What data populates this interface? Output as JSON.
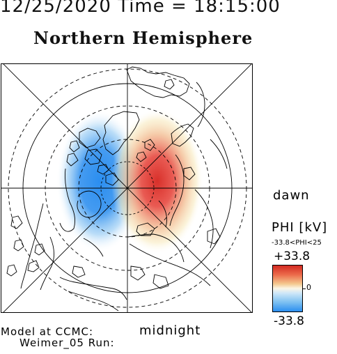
{
  "header": {
    "date_time": "12/25/2020 Time = 18:15:00",
    "hemisphere": "Northern Hemisphere"
  },
  "map": {
    "projection": "polar-stereographic",
    "view": "north-pole",
    "graticule": "dashed latitude circles, meridian spokes every 45°",
    "field": "electric potential (Weimer 2005 model)",
    "pattern": "two-cell convection",
    "dusk_cell": "negative (blue)",
    "dawn_cell": "positive (red)"
  },
  "labels": {
    "dawn": "dawn",
    "midnight": "midnight"
  },
  "colorbar": {
    "title": "PHI [kV]",
    "range_text": "-33.8<PHI<25",
    "max": "+33.8",
    "zero": "0",
    "min": "-33.8",
    "colors": {
      "high": "#d22a22",
      "mid": "#fbf6e6",
      "low": "#2b8ef0"
    }
  },
  "footer": {
    "line1": "Model at CCMC:",
    "line2": "Weimer_05 Run:"
  }
}
